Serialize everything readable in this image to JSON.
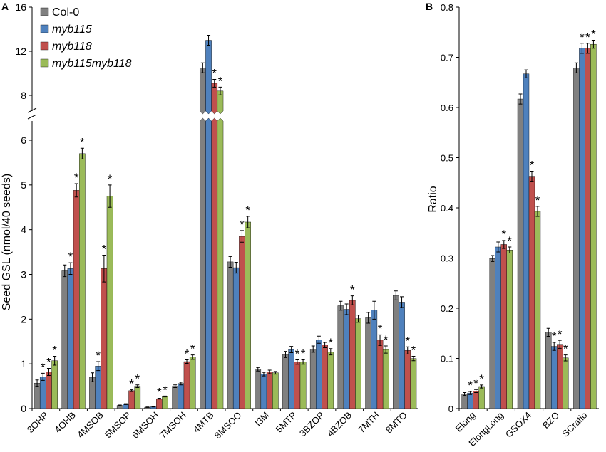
{
  "panels": [
    {
      "letter": "A"
    },
    {
      "letter": "B"
    }
  ],
  "legend": [
    {
      "label": "Col-0",
      "italic": false,
      "color": "#808080"
    },
    {
      "label": "myb115",
      "italic": true,
      "color": "#4f81bd"
    },
    {
      "label": "myb118",
      "italic": true,
      "color": "#c0504d"
    },
    {
      "label": "myb115myb118",
      "italic": true,
      "color": "#9bbb59"
    }
  ],
  "significance_marker": "*",
  "chart_data": [
    {
      "type": "bar",
      "panel": "A",
      "ylabel": "Seed GSL (nmol/40 seeds)",
      "xlabel": "",
      "broken_axis": true,
      "ylim_lower": [
        0,
        6.5
      ],
      "ylim_upper": [
        7,
        16
      ],
      "yticks_lower": [
        "0",
        "1",
        "2",
        "3",
        "4",
        "5",
        "6"
      ],
      "yticks_upper": [
        "8",
        "12",
        "16"
      ],
      "categories": [
        "3OHP",
        "4OHB",
        "4MSOB",
        "5MSOP",
        "6MSOH",
        "7MSOH",
        "4MTB",
        "8MSOO",
        "I3M",
        "5MTP",
        "3BZOP",
        "4BZOB",
        "7MTH",
        "8MTO"
      ],
      "series": [
        {
          "name": "Col-0",
          "values": [
            0.57,
            3.08,
            0.7,
            0.07,
            0.03,
            0.5,
            10.5,
            3.28,
            0.88,
            1.21,
            1.33,
            2.3,
            2.03,
            2.53
          ],
          "errors": [
            0.07,
            0.13,
            0.1,
            0.01,
            0.005,
            0.03,
            0.45,
            0.12,
            0.04,
            0.07,
            0.07,
            0.1,
            0.12,
            0.1
          ],
          "significant": [
            false,
            false,
            false,
            false,
            false,
            false,
            false,
            false,
            false,
            false,
            false,
            false,
            false,
            false
          ]
        },
        {
          "name": "myb115",
          "values": [
            0.71,
            3.13,
            0.95,
            0.1,
            0.04,
            0.56,
            13.0,
            3.15,
            0.77,
            1.32,
            1.54,
            2.22,
            2.2,
            2.38
          ],
          "errors": [
            0.08,
            0.13,
            0.1,
            0.01,
            0.005,
            0.03,
            0.45,
            0.12,
            0.04,
            0.07,
            0.08,
            0.12,
            0.2,
            0.12
          ],
          "significant": [
            true,
            true,
            true,
            false,
            false,
            false,
            false,
            false,
            false,
            false,
            false,
            false,
            false,
            false
          ]
        },
        {
          "name": "myb118",
          "values": [
            0.82,
            4.88,
            3.13,
            0.4,
            0.22,
            1.05,
            9.1,
            3.85,
            0.82,
            1.04,
            1.42,
            2.42,
            1.53,
            1.3
          ],
          "errors": [
            0.08,
            0.15,
            0.3,
            0.02,
            0.01,
            0.04,
            0.35,
            0.13,
            0.04,
            0.05,
            0.06,
            0.1,
            0.12,
            0.08
          ],
          "significant": [
            true,
            true,
            true,
            true,
            true,
            true,
            true,
            true,
            false,
            true,
            false,
            true,
            true,
            true
          ]
        },
        {
          "name": "myb115myb118",
          "values": [
            1.07,
            5.7,
            4.75,
            0.5,
            0.27,
            1.15,
            8.4,
            4.17,
            0.8,
            1.04,
            1.27,
            2.01,
            1.32,
            1.12
          ],
          "errors": [
            0.1,
            0.12,
            0.25,
            0.03,
            0.01,
            0.05,
            0.35,
            0.13,
            0.03,
            0.05,
            0.07,
            0.08,
            0.08,
            0.05
          ],
          "significant": [
            true,
            true,
            true,
            true,
            true,
            true,
            true,
            true,
            false,
            true,
            true,
            false,
            true,
            true
          ]
        }
      ]
    },
    {
      "type": "bar",
      "panel": "B",
      "ylabel": "Ratio",
      "xlabel": "",
      "ylim": [
        0,
        0.8
      ],
      "yticks": [
        "0",
        "0.1",
        "0.2",
        "0.3",
        "0.4",
        "0.5",
        "0.6",
        "0.7",
        "0.8"
      ],
      "categories": [
        "Elong",
        "ElongLong",
        "GSOX4",
        "BZO",
        "SCratio"
      ],
      "series": [
        {
          "name": "Col-0",
          "values": [
            0.029,
            0.299,
            0.617,
            0.152,
            0.679
          ],
          "errors": [
            0.003,
            0.006,
            0.01,
            0.008,
            0.01
          ],
          "significant": [
            false,
            false,
            false,
            false,
            false
          ]
        },
        {
          "name": "myb115",
          "values": [
            0.031,
            0.322,
            0.667,
            0.124,
            0.718
          ],
          "errors": [
            0.003,
            0.01,
            0.008,
            0.008,
            0.01
          ],
          "significant": [
            true,
            false,
            false,
            true,
            true
          ]
        },
        {
          "name": "myb118",
          "values": [
            0.035,
            0.327,
            0.463,
            0.128,
            0.718
          ],
          "errors": [
            0.003,
            0.008,
            0.01,
            0.008,
            0.01
          ],
          "significant": [
            true,
            true,
            true,
            true,
            true
          ]
        },
        {
          "name": "myb115myb118",
          "values": [
            0.044,
            0.316,
            0.393,
            0.101,
            0.726
          ],
          "errors": [
            0.003,
            0.006,
            0.01,
            0.006,
            0.008
          ],
          "significant": [
            true,
            true,
            true,
            true,
            true
          ]
        }
      ]
    }
  ]
}
